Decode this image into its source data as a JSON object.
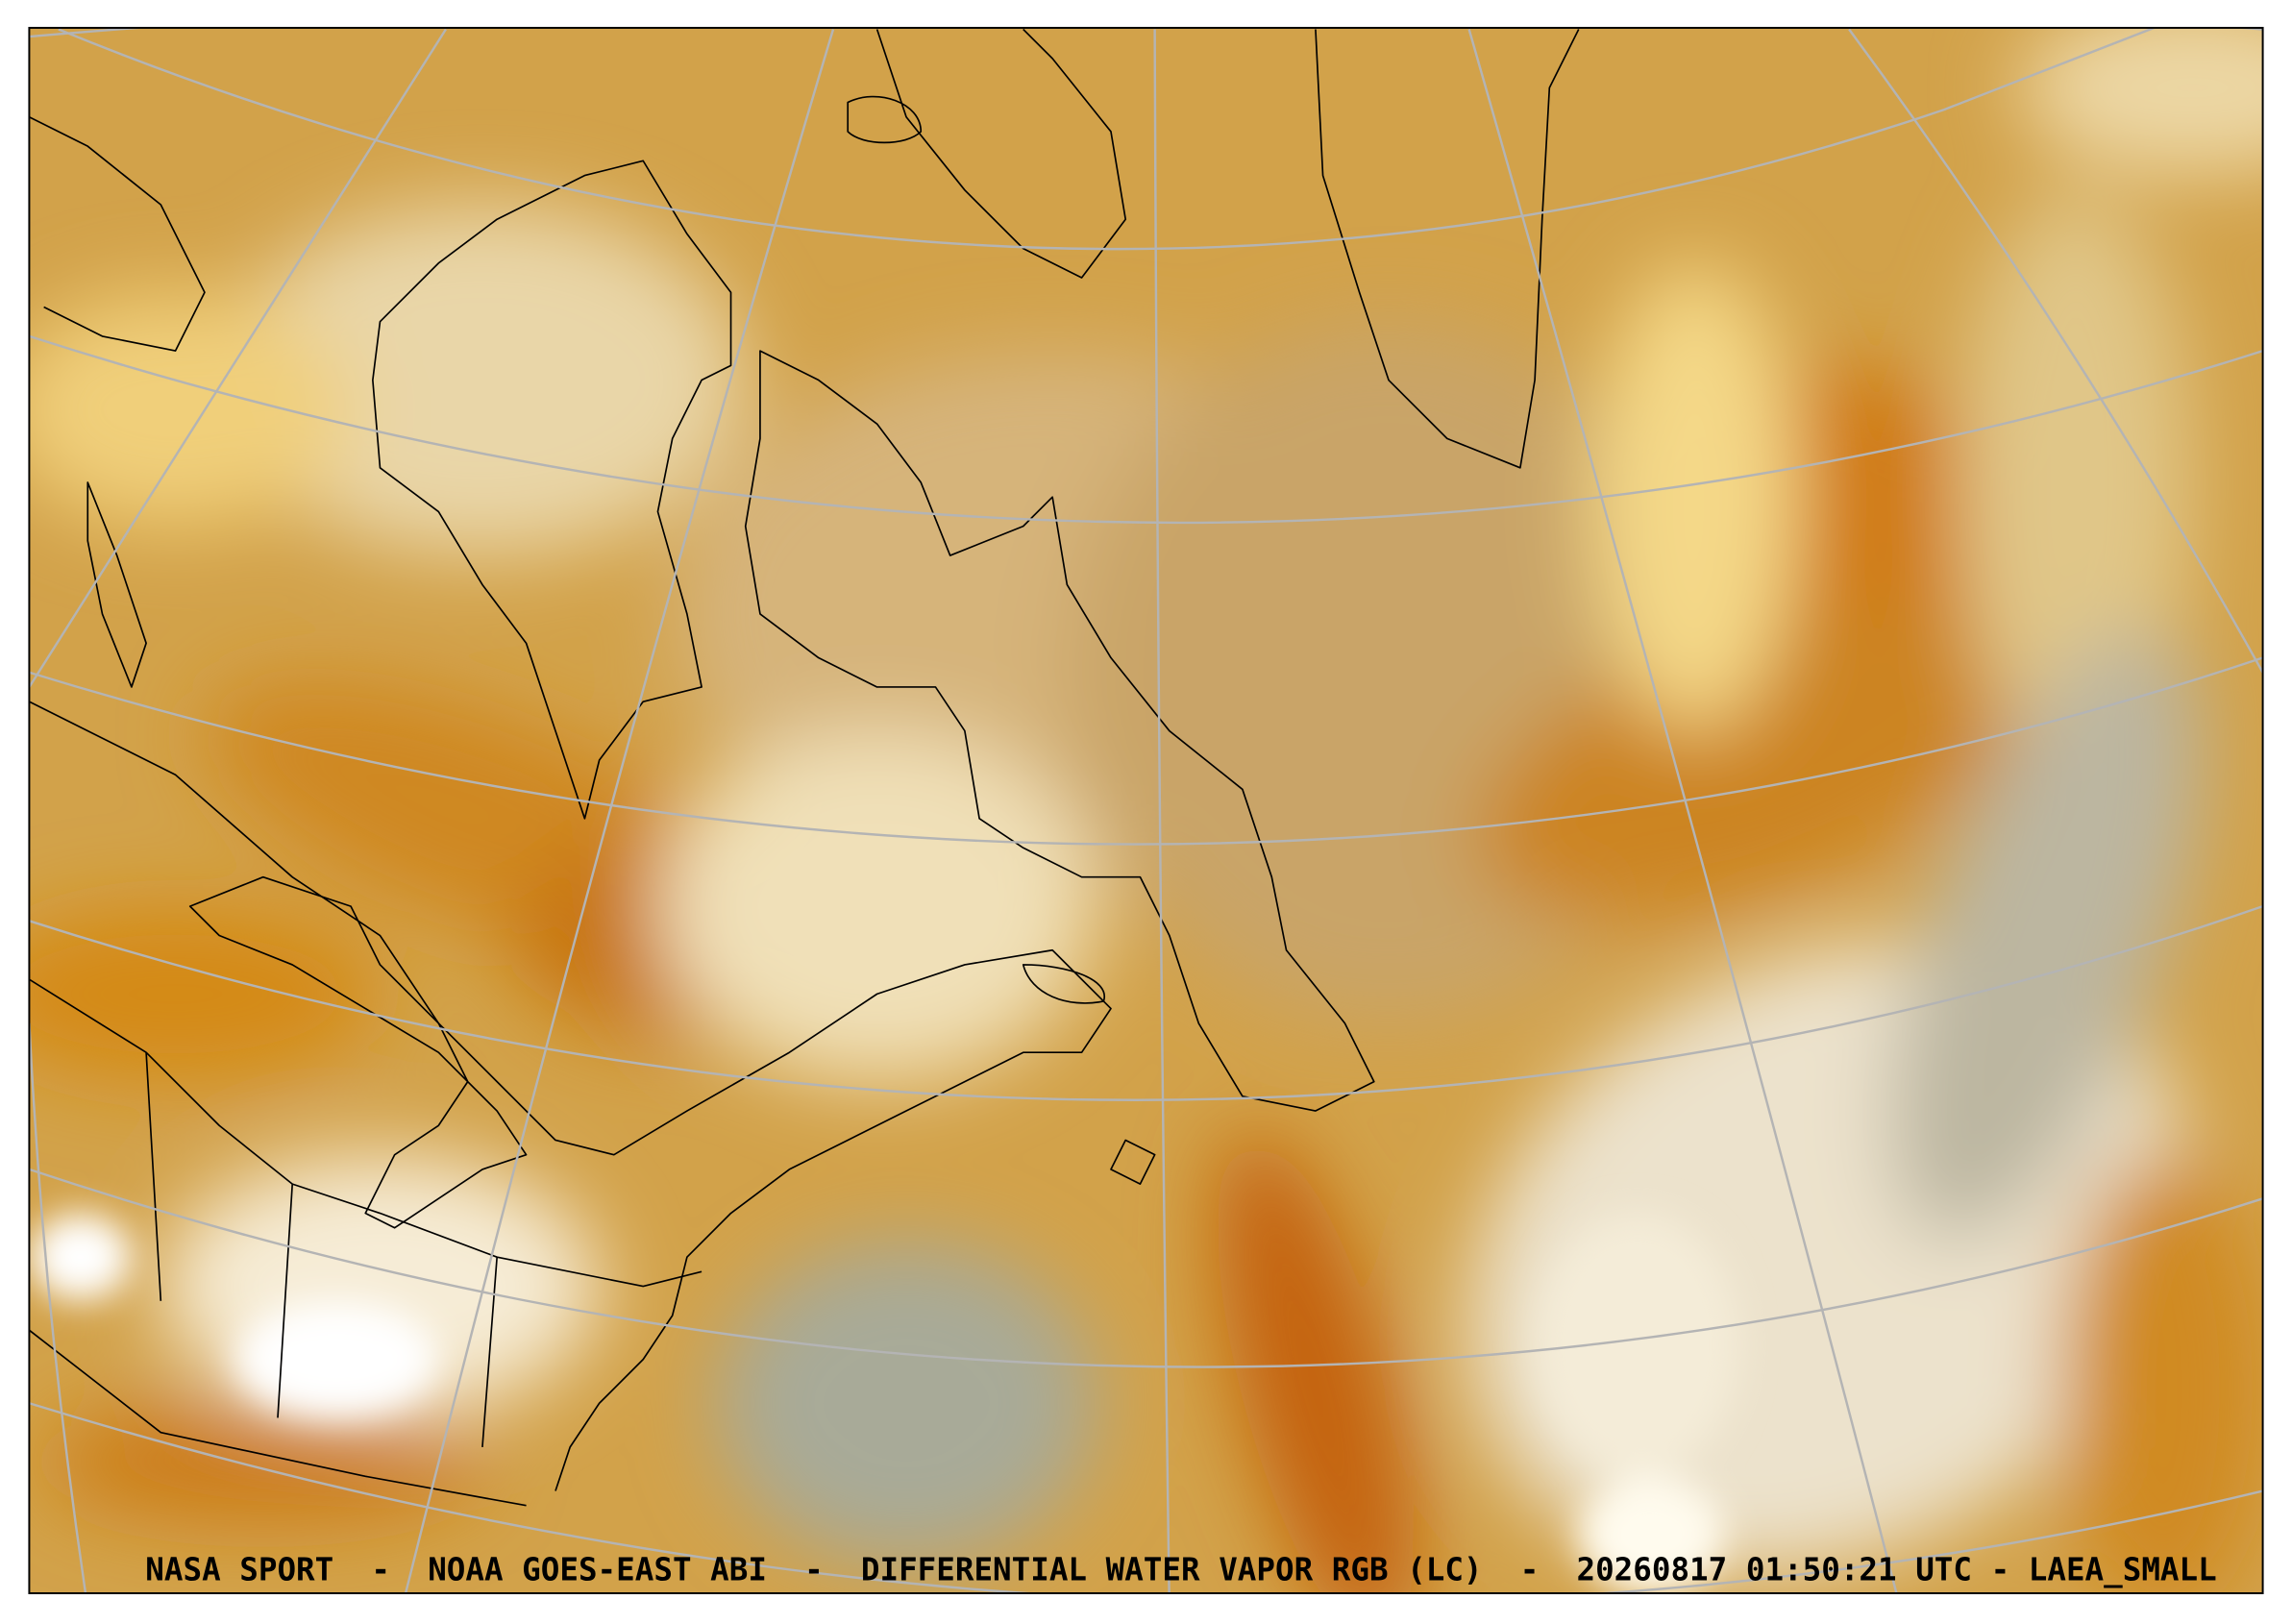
{
  "footer": {
    "caption": "NASA SPORT  -  NOAA GOES-EAST ABI  -  DIFFERENTIAL WATER VAPOR RGB (LC)  -  20260817 01:50:21 UTC - LAEA_SMALL"
  }
}
